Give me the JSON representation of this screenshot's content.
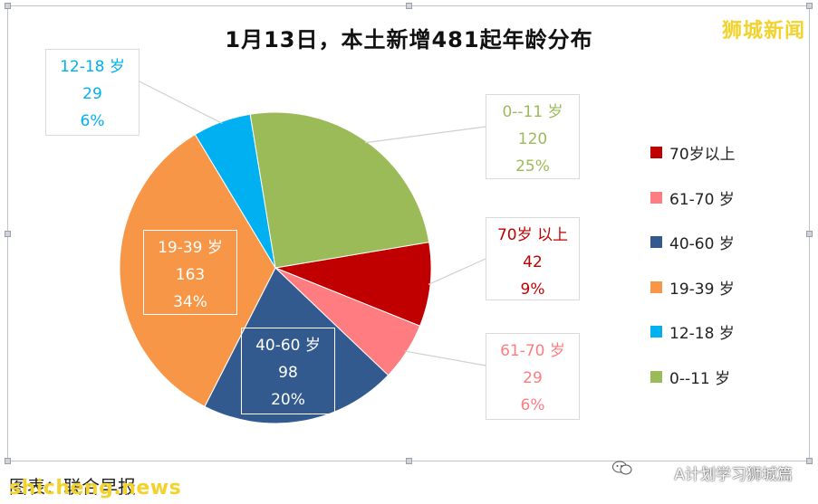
{
  "watermark_top": "狮城新闻",
  "source_text": "图表：联合早报",
  "site_brand": "shicheng.news",
  "account_brand": "A计划学习狮城篇",
  "chart_data": {
    "type": "pie",
    "title": "1月13日，本土新增481起年龄分布",
    "slices": [
      {
        "label": "70岁以上",
        "value": 42,
        "percent": "9%",
        "color": "#c00000",
        "data_label": "70岁 以上",
        "label_color": "#c00000"
      },
      {
        "label": "61-70 岁",
        "value": 29,
        "percent": "6%",
        "color": "#ff7c80",
        "data_label": "61-70 岁",
        "label_color": "#ff7c80"
      },
      {
        "label": "40-60 岁",
        "value": 98,
        "percent": "20%",
        "color": "#335a8e",
        "data_label": "40-60 岁",
        "label_color": "#ffffff"
      },
      {
        "label": "19-39 岁",
        "value": 163,
        "percent": "34%",
        "color": "#f79646",
        "data_label": "19-39 岁",
        "label_color": "#ffffff"
      },
      {
        "label": "12-18 岁",
        "value": 29,
        "percent": "6%",
        "color": "#00b0f0",
        "data_label": "12-18 岁",
        "label_color": "#00b0f0"
      },
      {
        "label": "0--11 岁",
        "value": 120,
        "percent": "25%",
        "color": "#9bbb59",
        "data_label": "0--11 岁",
        "label_color": "#9bbb59"
      }
    ],
    "legend_position": "right"
  }
}
